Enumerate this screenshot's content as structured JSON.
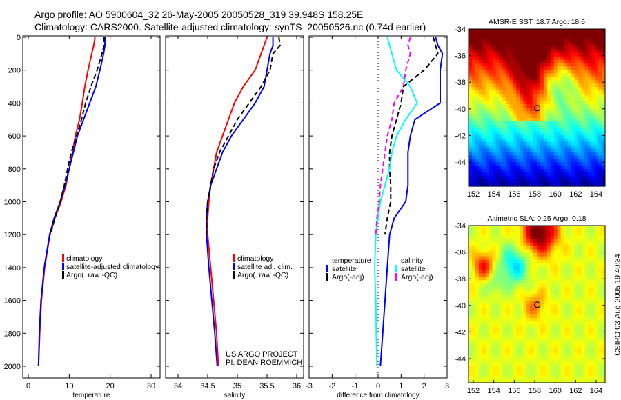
{
  "title_line1": "Argo profile: AO 5900604_32 26-May-2005 20050528_319 39.948S 158.25E",
  "title_line2": "Climatology: CARS2000. Satellite-adjusted climatology: synTS_20050526.nc (0.74d earlier)",
  "side_label": "CSIRO 03-Aug-2005 19:40:34",
  "credit_line1": "US ARGO PROJECT",
  "credit_line2": "PI: DEAN ROEMMICH",
  "colors": {
    "climatology": "#ff0000",
    "satellite": "#0000ff",
    "argo": "#000000",
    "sal_satellite": "#00ffff",
    "sal_argo": "#ff00ff"
  },
  "chart_data": [
    {
      "type": "line",
      "xlabel": "temperature",
      "ylabel": "",
      "xlim": [
        -2,
        32
      ],
      "ylim": [
        2050,
        0
      ],
      "xticks": [
        "0",
        "10",
        "20",
        "30"
      ],
      "yticks": [
        "0",
        "200",
        "400",
        "600",
        "800",
        "1000",
        "1200",
        "1400",
        "1600",
        "1800",
        "2000"
      ],
      "depth": [
        0,
        50,
        100,
        200,
        300,
        400,
        500,
        600,
        700,
        800,
        900,
        1000,
        1100,
        1200,
        1400,
        1600,
        1800,
        2000
      ],
      "series": [
        {
          "name": "climatology",
          "color": "#ff0000",
          "dash": false,
          "values": [
            16.3,
            16,
            15.5,
            14.6,
            13.8,
            13.2,
            12.5,
            11.5,
            10.8,
            10,
            9.2,
            8,
            6.5,
            5.3,
            4,
            3.2,
            2.8,
            2.5
          ]
        },
        {
          "name": "satellite-adjusted climatology",
          "color": "#0000ff",
          "dash": false,
          "values": [
            18.8,
            18.7,
            18.4,
            17.5,
            16.5,
            15,
            13.5,
            12,
            11,
            10,
            9,
            7.8,
            6.3,
            5.2,
            3.9,
            3.1,
            2.7,
            2.5
          ]
        },
        {
          "name": "Argo(..raw -QC)",
          "color": "#000000",
          "dash": true,
          "values": [
            18.5,
            18.5,
            18,
            16.8,
            15.3,
            14,
            13,
            11.8,
            10.5,
            9.6,
            8.8,
            7.8,
            6.5,
            5.4,
            null,
            null,
            null,
            null
          ]
        }
      ]
    },
    {
      "type": "line",
      "xlabel": "salinity",
      "xlim": [
        33.9,
        36.05
      ],
      "ylim": [
        2050,
        0
      ],
      "xticks": [
        "34",
        "34.5",
        "35",
        "35.5",
        "36"
      ],
      "depth": [
        0,
        50,
        100,
        200,
        300,
        400,
        500,
        600,
        700,
        800,
        900,
        1000,
        1100,
        1200,
        1400,
        1600,
        1800,
        2000
      ],
      "series": [
        {
          "name": "climatology",
          "color": "#ff0000",
          "dash": false,
          "values": [
            35.5,
            35.45,
            35.4,
            35.3,
            35.1,
            34.95,
            34.85,
            34.75,
            34.65,
            34.6,
            34.55,
            34.52,
            34.5,
            34.5,
            34.55,
            34.6,
            34.65,
            34.68
          ]
        },
        {
          "name": "satellite adj. clim.",
          "color": "#0000ff",
          "dash": false,
          "values": [
            35.6,
            35.6,
            35.55,
            35.5,
            35.45,
            35.3,
            35.1,
            34.9,
            34.75,
            34.65,
            34.55,
            34.5,
            34.48,
            34.48,
            34.52,
            34.57,
            34.62,
            34.66
          ]
        },
        {
          "name": "Argo(..raw -QC)",
          "color": "#000000",
          "dash": true,
          "values": [
            35.7,
            35.72,
            35.6,
            35.55,
            35.4,
            35.2,
            35,
            34.85,
            34.7,
            34.6,
            34.55,
            34.5,
            34.48,
            34.48,
            null,
            null,
            null,
            null
          ]
        }
      ]
    },
    {
      "type": "line",
      "xlabel": "difference from climatology",
      "xlim": [
        -3,
        3
      ],
      "ylim": [
        2050,
        0
      ],
      "xticks": [
        "-3",
        "-2",
        "-1",
        "0",
        "1",
        "2",
        "3"
      ],
      "legend_headers": [
        "temperature",
        "salinity"
      ],
      "depth": [
        0,
        50,
        100,
        200,
        300,
        400,
        500,
        600,
        700,
        800,
        900,
        1000,
        1100,
        1200,
        1400,
        1600,
        1800,
        2000
      ],
      "series": [
        {
          "name": "satellite",
          "group": "temperature",
          "color": "#0000ff",
          "dash": false,
          "values": [
            2.5,
            2.6,
            2.8,
            2.7,
            2.7,
            2.7,
            1.6,
            1.4,
            1.3,
            1.3,
            1.3,
            1.2,
            0.7,
            0.5,
            0.4,
            0.3,
            0.2,
            0.1
          ]
        },
        {
          "name": "Argo(-adj)",
          "group": "temperature",
          "color": "#000000",
          "dash": true,
          "values": [
            2.4,
            2.5,
            2.6,
            2,
            1.1,
            1,
            0.8,
            0.6,
            0.5,
            0.5,
            0.55,
            0.55,
            0.4,
            0.3,
            null,
            null,
            null,
            null
          ]
        },
        {
          "name": "satellite",
          "group": "salinity",
          "color": "#00ffff",
          "dash": false,
          "values": [
            0.4,
            0.5,
            0.6,
            0.8,
            1.4,
            1.7,
            1.2,
            0.8,
            0.6,
            0.5,
            0.3,
            0.1,
            0,
            -0.1,
            -0.15,
            -0.1,
            -0.08,
            -0.05
          ]
        },
        {
          "name": "Argo(-adj)",
          "group": "salinity",
          "color": "#ff00ff",
          "dash": true,
          "values": [
            1.4,
            1.3,
            1.4,
            1.2,
            1.1,
            0.7,
            0.6,
            0.4,
            0.3,
            0.2,
            0.1,
            0.05,
            -0.05,
            -0.1,
            null,
            null,
            null,
            null
          ]
        }
      ]
    },
    {
      "type": "heatmap",
      "title": "AMSR-E SST: 18.7 Argo: 18.6",
      "xlim": [
        151.6,
        165
      ],
      "ylim": [
        -45.8,
        -33.9
      ],
      "xticks": [
        "152",
        "154",
        "156",
        "158",
        "160",
        "162",
        "164"
      ],
      "yticks": [
        "-34",
        "-36",
        "-38",
        "-40",
        "-42",
        "-44"
      ],
      "marker": {
        "lon": 158.25,
        "lat": -39.95
      }
    },
    {
      "type": "heatmap",
      "title": "Altimetric SLA: 0.25 Argo: 0.18",
      "xlim": [
        151.6,
        165
      ],
      "ylim": [
        -45.8,
        -33.9
      ],
      "xticks": [
        "152",
        "154",
        "156",
        "158",
        "160",
        "162",
        "164"
      ],
      "yticks": [
        "-34",
        "-36",
        "-38",
        "-40",
        "-42",
        "-44"
      ],
      "marker": {
        "lon": 158.25,
        "lat": -39.95
      }
    }
  ]
}
